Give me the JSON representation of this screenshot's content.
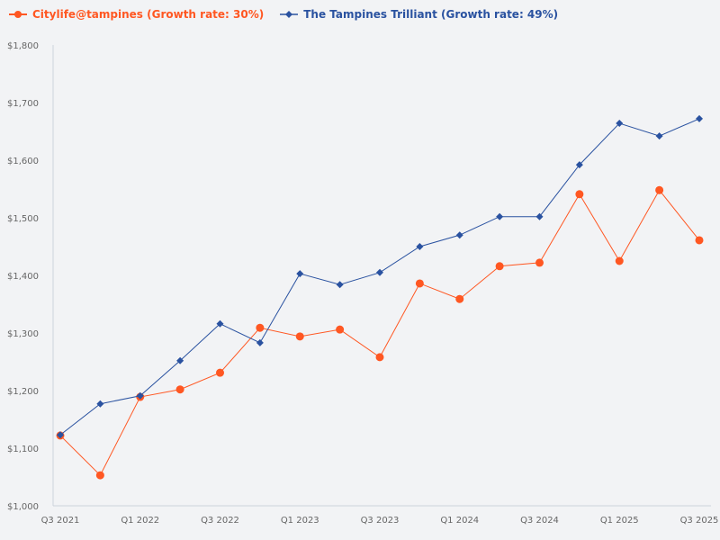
{
  "chart_data": {
    "type": "line",
    "title": "",
    "xlabel": "",
    "ylabel": "",
    "ylim": [
      1000,
      1800
    ],
    "yticks": [
      "$1,000",
      "$1,100",
      "$1,200",
      "$1,300",
      "$1,400",
      "$1,500",
      "$1,600",
      "$1,700",
      "$1,800"
    ],
    "categories": [
      "Q3 2021",
      "Q4 2021",
      "Q1 2022",
      "Q2 2022",
      "Q3 2022",
      "Q4 2022",
      "Q1 2023",
      "Q2 2023",
      "Q3 2023",
      "Q4 2023",
      "Q1 2024",
      "Q2 2024",
      "Q3 2024",
      "Q4 2024",
      "Q1 2025",
      "Q2 2025",
      "Q3 2025"
    ],
    "xtick_labels": [
      "Q3 2021",
      "",
      "Q1 2022",
      "",
      "Q3 2022",
      "",
      "Q1 2023",
      "",
      "Q3 2023",
      "",
      "Q1 2024",
      "",
      "Q3 2024",
      "",
      "Q1 2025",
      "",
      "Q3 2025"
    ],
    "grid": false,
    "legend_position": "top-left",
    "series": [
      {
        "name": "Citylife@tampines (Growth rate: 30%)",
        "color": "#ff5722",
        "marker": "circle",
        "values": [
          1122,
          1053,
          1189,
          1202,
          1231,
          1309,
          1294,
          1306,
          1258,
          1386,
          1359,
          1416,
          1422,
          1541,
          1425,
          1548,
          1461
        ]
      },
      {
        "name": "The Tampines Trilliant (Growth rate: 49%)",
        "color": "#2a52a0",
        "marker": "diamond",
        "values": [
          1123,
          1177,
          1191,
          1252,
          1316,
          1283,
          1403,
          1384,
          1405,
          1450,
          1470,
          1502,
          1502,
          1592,
          1664,
          1642,
          1672
        ]
      }
    ]
  }
}
